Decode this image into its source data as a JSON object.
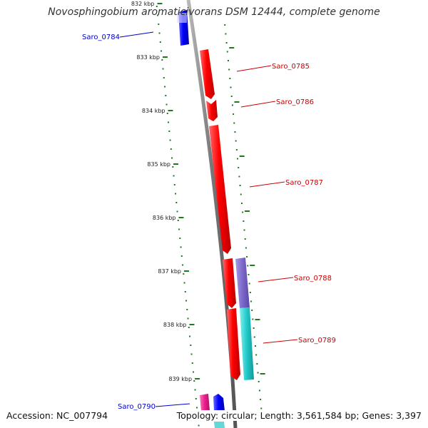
{
  "title": "Novosphingobium aromaticivorans DSM 12444, complete genome",
  "accession": "Accession: NC_007794",
  "summary": "Topology: circular; Length: 3,561,584 bp; Genes: 3,397",
  "colors": {
    "backbone": "#7a7a7a",
    "tick": "#1e7a1e",
    "forward_gene": "#e00000",
    "reverse_gene": "#0000e0",
    "label_forward": "#cc0000",
    "label_reverse": "#0000cc",
    "purple_feature": "#7b68c8",
    "cyan_feature": "#22c8c8",
    "pink_feature": "#e8208a"
  },
  "scale_ticks": [
    "832 kbp",
    "833 kbp",
    "834 kbp",
    "835 kbp",
    "836 kbp",
    "837 kbp",
    "838 kbp",
    "839 kbp"
  ],
  "genes": [
    {
      "name": "Saro_0784",
      "strand": "reverse"
    },
    {
      "name": "Saro_0785",
      "strand": "forward"
    },
    {
      "name": "Saro_0786",
      "strand": "forward"
    },
    {
      "name": "Saro_0787",
      "strand": "forward"
    },
    {
      "name": "Saro_0788",
      "strand": "forward"
    },
    {
      "name": "Saro_0789",
      "strand": "forward"
    },
    {
      "name": "Saro_0790",
      "strand": "reverse"
    }
  ]
}
